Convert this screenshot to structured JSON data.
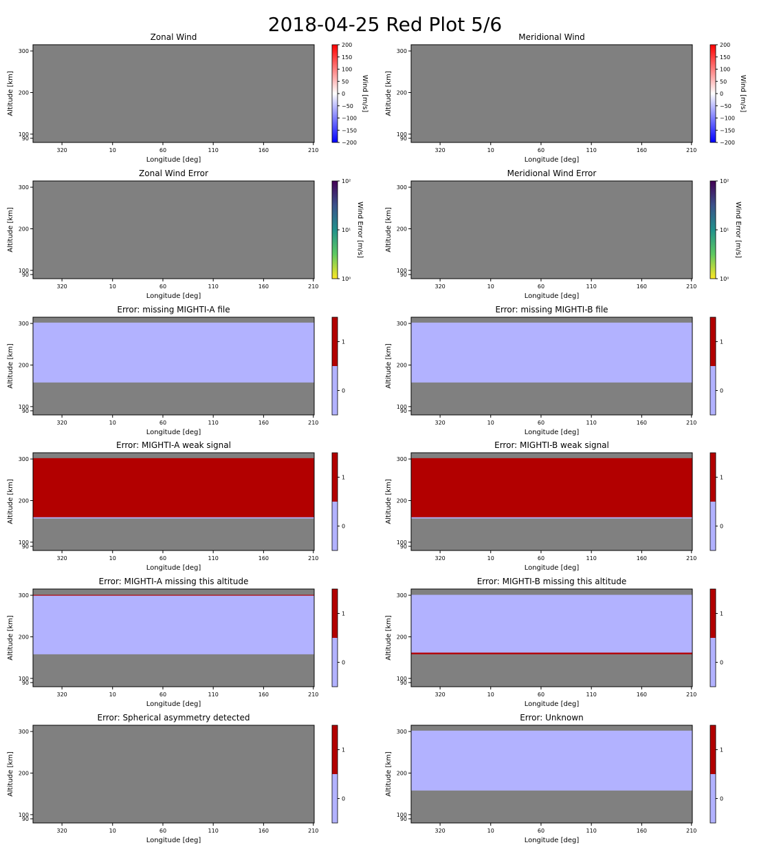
{
  "figure": {
    "title": "2018-04-25 Red Plot 5/6"
  },
  "colors": {
    "nodata": "#808080",
    "flag_off": "#b2b2ff",
    "flag_on": "#b20000",
    "axis": "#000000"
  },
  "chart_data": [
    {
      "type": "heatmap",
      "title": "Zonal Wind",
      "xlabel": "Longitude [deg]",
      "ylabel": "Altitude [km]",
      "xticks": [
        "320",
        "10",
        "60",
        "110",
        "160",
        "210"
      ],
      "yticks": [
        "90",
        "100",
        "200",
        "300"
      ],
      "cbar": {
        "kind": "bwr",
        "label": "Wind [m/s]",
        "range": [
          -200,
          200
        ],
        "ticks": [
          "200",
          "150",
          "100",
          "50",
          "0",
          "−50",
          "−100",
          "−150",
          "−200"
        ]
      },
      "fill": "nodata"
    },
    {
      "type": "heatmap",
      "title": "Meridional Wind",
      "xlabel": "Longitude [deg]",
      "ylabel": "Altitude [km]",
      "xticks": [
        "320",
        "10",
        "60",
        "110",
        "160",
        "210"
      ],
      "yticks": [
        "90",
        "100",
        "200",
        "300"
      ],
      "cbar": {
        "kind": "bwr",
        "label": "Wind [m/s]",
        "range": [
          -200,
          200
        ],
        "ticks": [
          "200",
          "150",
          "100",
          "50",
          "0",
          "−50",
          "−100",
          "−150",
          "−200"
        ]
      },
      "fill": "nodata"
    },
    {
      "type": "heatmap",
      "title": "Zonal Wind Error",
      "xlabel": "Longitude [deg]",
      "ylabel": "Altitude [km]",
      "xticks": [
        "320",
        "10",
        "60",
        "110",
        "160",
        "210"
      ],
      "yticks": [
        "90",
        "100",
        "200",
        "300"
      ],
      "cbar": {
        "kind": "viridis_r",
        "label": "Wind Error [m/s]",
        "scale": "log",
        "range": [
          1,
          100
        ],
        "ticks": [
          "10²",
          "10¹",
          "10⁰"
        ]
      },
      "fill": "nodata"
    },
    {
      "type": "heatmap",
      "title": "Meridional Wind Error",
      "xlabel": "Longitude [deg]",
      "ylabel": "Altitude [km]",
      "xticks": [
        "320",
        "10",
        "60",
        "110",
        "160",
        "210"
      ],
      "yticks": [
        "90",
        "100",
        "200",
        "300"
      ],
      "cbar": {
        "kind": "viridis_r",
        "label": "Wind Error [m/s]",
        "scale": "log",
        "range": [
          1,
          100
        ],
        "ticks": [
          "10²",
          "10¹",
          "10⁰"
        ]
      },
      "fill": "nodata"
    },
    {
      "type": "heatmap",
      "title": "Error: missing MIGHTI-A file",
      "xlabel": "Longitude [deg]",
      "ylabel": "Altitude [km]",
      "xticks": [
        "320",
        "10",
        "60",
        "110",
        "160",
        "210"
      ],
      "yticks": [
        "90",
        "100",
        "200",
        "300"
      ],
      "cbar": {
        "kind": "binary",
        "label": "",
        "ticks": [
          "1",
          "0"
        ]
      },
      "fill": "nodata",
      "bands": [
        {
          "value": 0,
          "from_alt": 158,
          "to_alt": 302
        }
      ]
    },
    {
      "type": "heatmap",
      "title": "Error: missing MIGHTI-B file",
      "xlabel": "Longitude [deg]",
      "ylabel": "Altitude [km]",
      "xticks": [
        "320",
        "10",
        "60",
        "110",
        "160",
        "210"
      ],
      "yticks": [
        "90",
        "100",
        "200",
        "300"
      ],
      "cbar": {
        "kind": "binary",
        "label": "",
        "ticks": [
          "1",
          "0"
        ]
      },
      "fill": "nodata",
      "bands": [
        {
          "value": 0,
          "from_alt": 158,
          "to_alt": 302
        }
      ]
    },
    {
      "type": "heatmap",
      "title": "Error: MIGHTI-A weak signal",
      "xlabel": "Longitude [deg]",
      "ylabel": "Altitude [km]",
      "xticks": [
        "320",
        "10",
        "60",
        "110",
        "160",
        "210"
      ],
      "yticks": [
        "90",
        "100",
        "200",
        "300"
      ],
      "cbar": {
        "kind": "binary",
        "label": "",
        "ticks": [
          "1",
          "0"
        ]
      },
      "fill": "nodata",
      "bands": [
        {
          "value": 0,
          "from_alt": 157,
          "to_alt": 160
        },
        {
          "value": 1,
          "from_alt": 160,
          "to_alt": 302
        }
      ]
    },
    {
      "type": "heatmap",
      "title": "Error: MIGHTI-B weak signal",
      "xlabel": "Longitude [deg]",
      "ylabel": "Altitude [km]",
      "xticks": [
        "320",
        "10",
        "60",
        "110",
        "160",
        "210"
      ],
      "yticks": [
        "90",
        "100",
        "200",
        "300"
      ],
      "cbar": {
        "kind": "binary",
        "label": "",
        "ticks": [
          "1",
          "0"
        ]
      },
      "fill": "nodata",
      "bands": [
        {
          "value": 0,
          "from_alt": 157,
          "to_alt": 160
        },
        {
          "value": 1,
          "from_alt": 160,
          "to_alt": 302
        }
      ]
    },
    {
      "type": "heatmap",
      "title": "Error: MIGHTI-A missing this altitude",
      "xlabel": "Longitude [deg]",
      "ylabel": "Altitude [km]",
      "xticks": [
        "320",
        "10",
        "60",
        "110",
        "160",
        "210"
      ],
      "yticks": [
        "90",
        "100",
        "200",
        "300"
      ],
      "cbar": {
        "kind": "binary",
        "label": "",
        "ticks": [
          "1",
          "0"
        ]
      },
      "fill": "nodata",
      "bands": [
        {
          "value": 0,
          "from_alt": 158,
          "to_alt": 301
        },
        {
          "value": 1,
          "from_alt": 299,
          "to_alt": 301
        }
      ]
    },
    {
      "type": "heatmap",
      "title": "Error: MIGHTI-B missing this altitude",
      "xlabel": "Longitude [deg]",
      "ylabel": "Altitude [km]",
      "xticks": [
        "320",
        "10",
        "60",
        "110",
        "160",
        "210"
      ],
      "yticks": [
        "90",
        "100",
        "200",
        "300"
      ],
      "cbar": {
        "kind": "binary",
        "label": "",
        "ticks": [
          "1",
          "0"
        ]
      },
      "fill": "nodata",
      "bands": [
        {
          "value": 0,
          "from_alt": 158,
          "to_alt": 301
        },
        {
          "value": 1,
          "from_alt": 158,
          "to_alt": 162
        }
      ]
    },
    {
      "type": "heatmap",
      "title": "Error: Spherical asymmetry detected",
      "xlabel": "Longitude [deg]",
      "ylabel": "Altitude [km]",
      "xticks": [
        "320",
        "10",
        "60",
        "110",
        "160",
        "210"
      ],
      "yticks": [
        "90",
        "100",
        "200",
        "300"
      ],
      "cbar": {
        "kind": "binary",
        "label": "",
        "ticks": [
          "1",
          "0"
        ]
      },
      "fill": "nodata"
    },
    {
      "type": "heatmap",
      "title": "Error: Unknown",
      "xlabel": "Longitude [deg]",
      "ylabel": "Altitude [km]",
      "xticks": [
        "320",
        "10",
        "60",
        "110",
        "160",
        "210"
      ],
      "yticks": [
        "90",
        "100",
        "200",
        "300"
      ],
      "cbar": {
        "kind": "binary",
        "label": "",
        "ticks": [
          "1",
          "0"
        ]
      },
      "fill": "nodata",
      "bands": [
        {
          "value": 0,
          "from_alt": 158,
          "to_alt": 302
        }
      ]
    }
  ]
}
